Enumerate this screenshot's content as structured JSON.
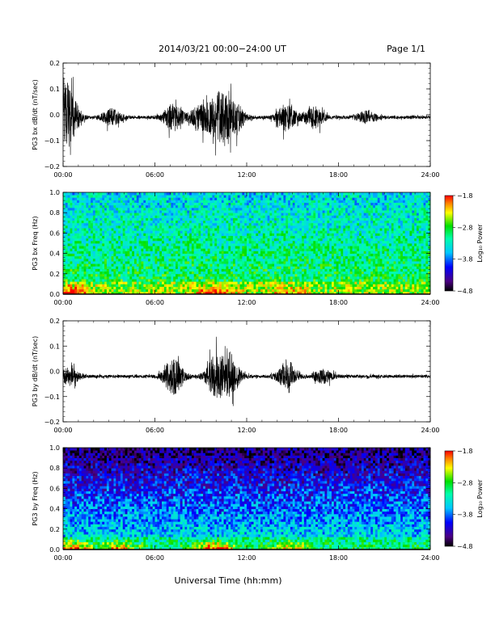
{
  "header": {
    "title": "2014/03/21  00:00−24:00 UT",
    "page": "Page 1/1"
  },
  "xlabel": "Universal Time (hh:mm)",
  "time_ticks": [
    "00:00",
    "06:00",
    "12:00",
    "18:00",
    "24:00"
  ],
  "chart_data": [
    {
      "type": "line",
      "ylabel": "PG3 bx dB/dt (nT/sec)",
      "xlim": [
        0,
        24
      ],
      "ylim": [
        -0.2,
        0.2
      ],
      "yticks": [
        "0.2",
        "0.1",
        "0.0",
        "−0.1",
        "−0.2"
      ],
      "ytick_values": [
        0.2,
        0.1,
        0.0,
        -0.1,
        -0.2
      ],
      "baseline": -0.01,
      "activity": [
        {
          "t": 0.3,
          "amp": 0.13
        },
        {
          "t": 3.2,
          "amp": 0.03
        },
        {
          "t": 7.2,
          "amp": 0.05
        },
        {
          "t": 9.0,
          "amp": 0.05
        },
        {
          "t": 10.2,
          "amp": 0.09
        },
        {
          "t": 11.2,
          "amp": 0.06
        },
        {
          "t": 14.6,
          "amp": 0.05
        },
        {
          "t": 16.4,
          "amp": 0.04
        },
        {
          "t": 19.8,
          "amp": 0.02
        }
      ]
    },
    {
      "type": "heatmap",
      "ylabel": "PG3 bx Freq (Hz)",
      "xlim": [
        0,
        24
      ],
      "ylim": [
        0,
        1
      ],
      "yticks": [
        "1.0",
        "0.8",
        "0.6",
        "0.4",
        "0.2",
        "0.0"
      ],
      "ytick_values": [
        1.0,
        0.8,
        0.6,
        0.4,
        0.2,
        0.0
      ],
      "colorbar": {
        "label": "Log₁₀ Power",
        "ticks": [
          "−1.8",
          "−2.8",
          "−3.8",
          "−4.8"
        ],
        "range": [
          -4.8,
          -1.8
        ]
      },
      "background_level": -2.95,
      "low_freq_enhancement": [
        {
          "t": 0.4,
          "level": -2.0
        },
        {
          "t": 9.8,
          "level": -2.0
        },
        {
          "t": 14.8,
          "level": -2.5
        }
      ]
    },
    {
      "type": "line",
      "ylabel": "PG3 by dB/dt (nT/sec)",
      "xlim": [
        0,
        24
      ],
      "ylim": [
        -0.2,
        0.2
      ],
      "yticks": [
        "0.2",
        "0.1",
        "0.0",
        "−0.1",
        "−0.2"
      ],
      "ytick_values": [
        0.2,
        0.1,
        0.0,
        -0.1,
        -0.2
      ],
      "baseline": -0.02,
      "activity": [
        {
          "t": 0.4,
          "amp": 0.03
        },
        {
          "t": 7.2,
          "amp": 0.07
        },
        {
          "t": 10.0,
          "amp": 0.08
        },
        {
          "t": 11.0,
          "amp": 0.06
        },
        {
          "t": 14.6,
          "amp": 0.04
        },
        {
          "t": 17.0,
          "amp": 0.025
        }
      ]
    },
    {
      "type": "heatmap",
      "ylabel": "PG3 by Freq (Hz)",
      "xlim": [
        0,
        24
      ],
      "ylim": [
        0,
        1
      ],
      "yticks": [
        "1.0",
        "0.8",
        "0.6",
        "0.4",
        "0.2",
        "0.0"
      ],
      "ytick_values": [
        1.0,
        0.8,
        0.6,
        0.4,
        0.2,
        0.0
      ],
      "colorbar": {
        "label": "Log₁₀ Power",
        "ticks": [
          "−1.8",
          "−2.8",
          "−3.8",
          "−4.8"
        ],
        "range": [
          -4.8,
          -1.8
        ]
      },
      "background_level": -3.5,
      "low_freq_enhancement": [
        {
          "t": 0.6,
          "level": -2.3
        },
        {
          "t": 3.6,
          "level": -2.6
        },
        {
          "t": 9.9,
          "level": -2.1
        },
        {
          "t": 14.8,
          "level": -2.7
        }
      ]
    }
  ]
}
